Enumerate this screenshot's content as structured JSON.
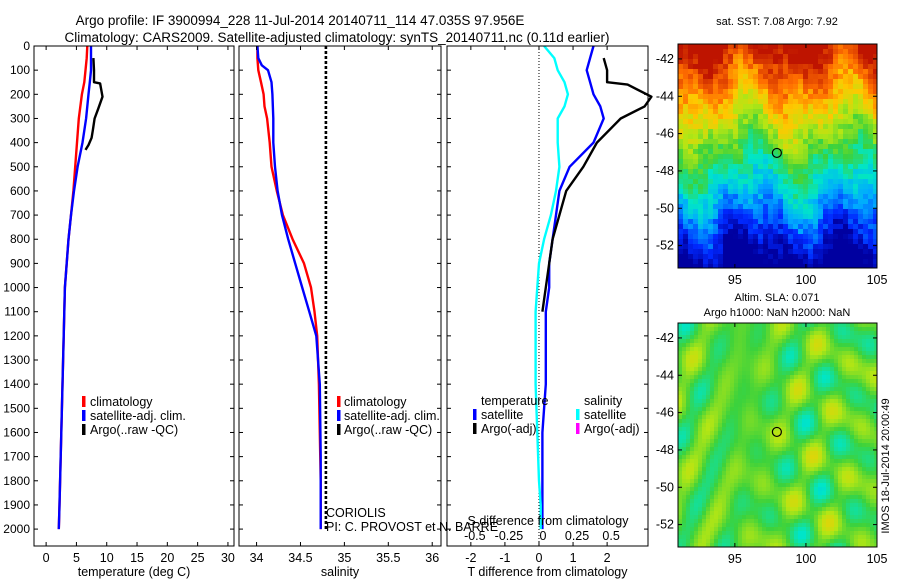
{
  "title": {
    "line1": "Argo profile: IF 3900994_228 11-Jul-2014 20140711_114 47.035S 97.956E",
    "line2": "Climatology: CARS2009. Satellite-adjusted climatology: synTS_20140711.nc (0.11d earlier)"
  },
  "chart_data": [
    {
      "type": "line",
      "panel": "temperature",
      "xlabel": "temperature (deg C)",
      "ylabel": "",
      "xlim": [
        -2,
        31
      ],
      "ylim": [
        2070,
        0
      ],
      "y_reversed": true,
      "xticks": [
        0,
        5,
        10,
        15,
        20,
        25,
        30
      ],
      "yticks": [
        0,
        100,
        200,
        300,
        400,
        500,
        600,
        700,
        800,
        900,
        1000,
        1100,
        1200,
        1300,
        1400,
        1500,
        1600,
        1700,
        1800,
        1900,
        2000
      ],
      "legend": {
        "placement": "lower-center",
        "entries": [
          "climatology",
          "satellite-adj. clim.",
          "Argo(..raw -QC)"
        ]
      },
      "series": [
        {
          "name": "climatology",
          "color": "#ff0000",
          "x": [
            6.8,
            6.7,
            6.5,
            6.3,
            5.9,
            5.4,
            5.1,
            4.8,
            4.5,
            4.1,
            3.7,
            3.4,
            3.1,
            2.9,
            2.7,
            2.5,
            2.4,
            2.3,
            2.2,
            2.1
          ],
          "y": [
            0,
            50,
            100,
            150,
            200,
            300,
            400,
            500,
            600,
            700,
            800,
            900,
            1000,
            1200,
            1400,
            1600,
            1700,
            1800,
            1900,
            2000
          ]
        },
        {
          "name": "satellite-adj. clim.",
          "color": "#0000ff",
          "x": [
            7.4,
            7.4,
            7.4,
            7.2,
            7.0,
            6.6,
            6.0,
            5.2,
            4.6,
            4.1,
            3.7,
            3.4,
            3.1,
            2.9,
            2.7,
            2.5,
            2.4,
            2.3,
            2.2,
            2.1
          ],
          "y": [
            0,
            50,
            100,
            150,
            200,
            300,
            400,
            500,
            600,
            700,
            800,
            900,
            1000,
            1200,
            1400,
            1600,
            1700,
            1800,
            1900,
            2000
          ]
        },
        {
          "name": "Argo(..raw -QC)",
          "color": "#000000",
          "x": [
            7.8,
            7.9,
            7.9,
            8.9,
            9.3,
            8.6,
            8.0,
            7.7,
            7.5,
            7.0,
            6.5
          ],
          "y": [
            50,
            100,
            150,
            155,
            210,
            260,
            300,
            350,
            380,
            410,
            430
          ]
        }
      ]
    },
    {
      "type": "line",
      "panel": "salinity",
      "xlabel": "salinity",
      "ylabel": "",
      "xlim": [
        33.8,
        36.1
      ],
      "ylim": [
        2070,
        0
      ],
      "y_reversed": true,
      "xticks": [
        34,
        34.5,
        35,
        35.5,
        36
      ],
      "legend": {
        "placement": "lower-center",
        "entries": [
          "climatology",
          "satellite-adj. clim.",
          "Argo(..raw -QC)"
        ]
      },
      "series": [
        {
          "name": "climatology",
          "color": "#ff0000",
          "x": [
            34.01,
            34.01,
            34.02,
            34.05,
            34.08,
            34.09,
            34.12,
            34.15,
            34.17,
            34.23,
            34.3,
            34.41,
            34.54,
            34.62,
            34.66,
            34.69,
            34.71,
            34.72,
            34.73,
            34.73,
            34.73
          ],
          "y": [
            0,
            50,
            100,
            150,
            200,
            250,
            300,
            400,
            500,
            600,
            700,
            800,
            900,
            1000,
            1100,
            1200,
            1400,
            1600,
            1800,
            1900,
            2000
          ]
        },
        {
          "name": "satellite-adj. clim.",
          "color": "#0000ff",
          "x": [
            34.01,
            34.02,
            34.06,
            34.13,
            34.17,
            34.18,
            34.19,
            34.19,
            34.21,
            34.24,
            34.29,
            34.36,
            34.44,
            34.52,
            34.6,
            34.68,
            34.72,
            34.73,
            34.73
          ],
          "y": [
            0,
            50,
            80,
            100,
            150,
            200,
            300,
            400,
            500,
            600,
            700,
            800,
            900,
            1000,
            1100,
            1200,
            1400,
            1700,
            2000
          ]
        },
        {
          "name": "Argo(..raw -QC)",
          "color": "#000000",
          "style": "dashed",
          "x": [
            34.79,
            34.79,
            34.79,
            34.79,
            34.79,
            34.79,
            34.79,
            34.79,
            34.79,
            34.79,
            34.79
          ],
          "y": [
            0,
            200,
            400,
            600,
            800,
            1000,
            1200,
            1400,
            1600,
            1800,
            2000
          ]
        }
      ],
      "annotations": [
        "CORIOLIS",
        "PI: C. PROVOST et N. BARRE"
      ]
    },
    {
      "type": "line",
      "panel": "difference",
      "xlabel": "T difference from climatology",
      "xlabel_top": "S difference from climatology",
      "xlim": [
        -2.7,
        3.2
      ],
      "ylim": [
        2070,
        0
      ],
      "y_reversed": true,
      "xticks": [
        -2,
        -1,
        0,
        1,
        2
      ],
      "xticklabels_top": [
        "-0.5",
        "-0.25",
        "0",
        "0.25",
        "0.5"
      ],
      "zero_line": "dotted",
      "legend": {
        "placement": "lower-center",
        "temperature_header": "temperature",
        "salinity_header": "salinity",
        "entries": [
          "satellite",
          "Argo(-adj)",
          "satellite",
          "Argo(-adj)"
        ]
      },
      "series": [
        {
          "name": "temperature satellite",
          "color": "#0000ff",
          "x": [
            1.6,
            1.5,
            1.4,
            1.5,
            1.6,
            1.8,
            1.9,
            1.6,
            0.9,
            0.6,
            0.5,
            0.4,
            0.3,
            0.3,
            0.2,
            0.2,
            0.2,
            0.1,
            0.1,
            0.1,
            0.1
          ],
          "y": [
            0,
            50,
            100,
            150,
            200,
            250,
            300,
            400,
            500,
            600,
            700,
            800,
            900,
            1000,
            1100,
            1200,
            1400,
            1600,
            1800,
            1900,
            2000
          ]
        },
        {
          "name": "temperature Argo(-adj)",
          "color": "#000000",
          "x": [
            1.9,
            2.0,
            2.0,
            2.6,
            3.3,
            3.1,
            2.4,
            1.7,
            1.3,
            0.8,
            0.6,
            0.4,
            0.3,
            0.2,
            0.1
          ],
          "y": [
            50,
            100,
            150,
            160,
            210,
            250,
            300,
            400,
            500,
            600,
            700,
            800,
            900,
            1000,
            1100
          ]
        },
        {
          "name": "salinity satellite",
          "color": "#00ffff",
          "x": [
            0.15,
            0.45,
            0.55,
            0.75,
            0.85,
            0.75,
            0.55,
            0.55,
            0.6,
            0.5,
            0.35,
            0.15,
            0,
            -0.05,
            -0.1,
            -0.1,
            -0.1,
            -0.05,
            0,
            0.05,
            0.05
          ],
          "y": [
            0,
            50,
            100,
            150,
            200,
            250,
            300,
            400,
            500,
            600,
            700,
            800,
            900,
            1000,
            1100,
            1200,
            1400,
            1600,
            1800,
            1900,
            2000
          ]
        },
        {
          "name": "salinity Argo(-adj)",
          "color": "#ff00ff",
          "x": [],
          "y": []
        }
      ]
    },
    {
      "type": "heatmap",
      "panel": "sst-map",
      "title": "sat. SST: 7.08 Argo: 7.92",
      "xlim": [
        91,
        105
      ],
      "ylim": [
        -53.2,
        -41.2
      ],
      "xticks": [
        95,
        100,
        105
      ],
      "yticks": [
        -42,
        -44,
        -46,
        -48,
        -50,
        -52
      ],
      "marker": {
        "lon": 97.956,
        "lat": -47.035
      }
    },
    {
      "type": "heatmap",
      "panel": "sla-map",
      "title": "Altim. SLA: 0.071",
      "subtitle": "Argo h1000: NaN h2000: NaN",
      "xlim": [
        91,
        105
      ],
      "ylim": [
        -53.2,
        -41.2
      ],
      "xticks": [
        95,
        100,
        105
      ],
      "yticks": [
        -42,
        -44,
        -46,
        -48,
        -50,
        -52
      ],
      "marker": {
        "lon": 97.956,
        "lat": -47.035
      },
      "side_label": "IMOS 18-Jul-2014 20:00:49"
    }
  ]
}
